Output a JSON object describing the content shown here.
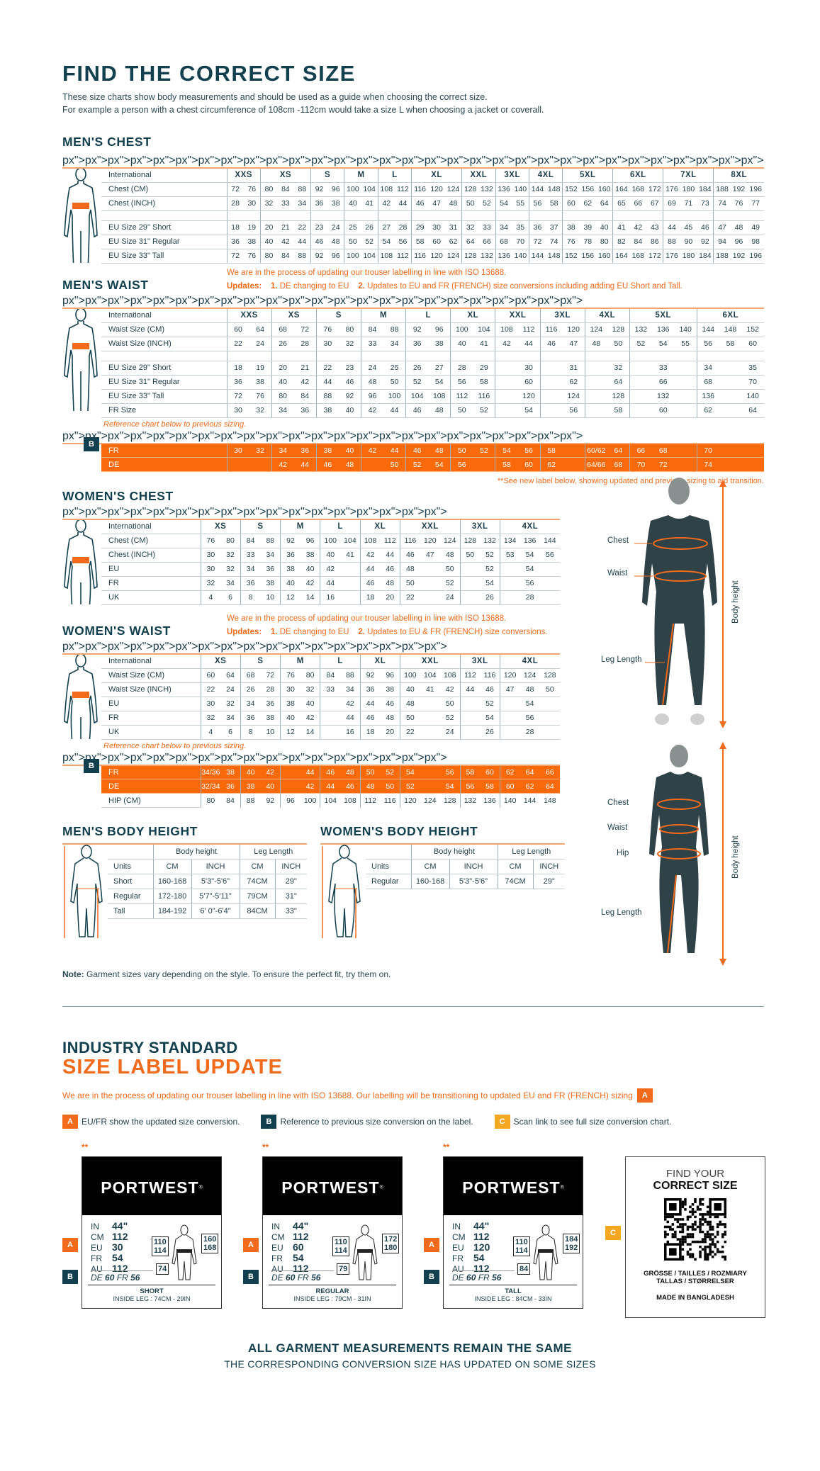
{
  "colors": {
    "navy": "#13404f",
    "orange": "#f26a1b",
    "badge_c": "#f7a823"
  },
  "title": "FIND THE CORRECT SIZE",
  "subtitle": [
    "These size charts show body measurements and should be used as a guide when choosing the correct size.",
    "For example a person with a chest circumference of 108cm -112cm would take a size L when choosing a jacket or coverall."
  ],
  "update_notes": {
    "iso": "We are in the process of updating our trouser labelling in line with ISO 13688.",
    "updates_label": "Updates:",
    "u1_num": "1.",
    "u1": "DE changing to EU",
    "u2_num": "2.",
    "u2_men": "Updates to EU and FR (FRENCH) size conversions including adding EU Short and Tall.",
    "u2_women": "Updates to EU & FR (FRENCH) size conversions.",
    "reference": "Reference chart below to previous sizing.",
    "see_new": "**See new label below, showing updated and previous sizing to aid transition."
  },
  "mens_chest": {
    "heading": "MEN'S CHEST",
    "header_label": "International",
    "groups": [
      [
        "XXS",
        2
      ],
      [
        "XS",
        3
      ],
      [
        "S",
        2
      ],
      [
        "M",
        2
      ],
      [
        "L",
        2
      ],
      [
        "XL",
        3
      ],
      [
        "XXL",
        2
      ],
      [
        "3XL",
        2
      ],
      [
        "4XL",
        2
      ],
      [
        "5XL",
        3
      ],
      [
        "6XL",
        3
      ],
      [
        "7XL",
        3
      ],
      [
        "8XL",
        3
      ]
    ],
    "rows": [
      {
        "label": "Chest (CM)",
        "cells": [
          "72",
          "76",
          "80",
          "84",
          "88",
          "92",
          "96",
          "100",
          "104",
          "108",
          "112",
          "116",
          "120",
          "124",
          "128",
          "132",
          "136",
          "140",
          "144",
          "148",
          "152",
          "156",
          "160",
          "164",
          "168",
          "172",
          "176",
          "180",
          "184",
          "188",
          "192",
          "196"
        ]
      },
      {
        "label": "Chest (INCH)",
        "cells": [
          "28",
          "30",
          "32",
          "33",
          "34",
          "36",
          "38",
          "40",
          "41",
          "42",
          "44",
          "46",
          "47",
          "48",
          "50",
          "52",
          "54",
          "55",
          "56",
          "58",
          "60",
          "62",
          "64",
          "65",
          "66",
          "67",
          "69",
          "71",
          "73",
          "74",
          "76",
          "77"
        ]
      }
    ],
    "eu_rows": [
      {
        "label": "EU Size 29\" Short",
        "cells": [
          "18",
          "19",
          "20",
          "21",
          "22",
          "23",
          "24",
          "25",
          "26",
          "27",
          "28",
          "29",
          "30",
          "31",
          "32",
          "33",
          "34",
          "35",
          "36",
          "37",
          "38",
          "39",
          "40",
          "41",
          "42",
          "43",
          "44",
          "45",
          "46",
          "47",
          "48",
          "49"
        ]
      },
      {
        "label": "EU Size 31\" Regular",
        "cells": [
          "36",
          "38",
          "40",
          "42",
          "44",
          "46",
          "48",
          "50",
          "52",
          "54",
          "56",
          "58",
          "60",
          "62",
          "64",
          "66",
          "68",
          "70",
          "72",
          "74",
          "76",
          "78",
          "80",
          "82",
          "84",
          "86",
          "88",
          "90",
          "92",
          "94",
          "96",
          "98"
        ]
      },
      {
        "label": "EU Size 33\" Tall",
        "cells": [
          "72",
          "76",
          "80",
          "84",
          "88",
          "92",
          "96",
          "100",
          "104",
          "108",
          "112",
          "116",
          "120",
          "124",
          "128",
          "132",
          "136",
          "140",
          "144",
          "148",
          "152",
          "156",
          "160",
          "164",
          "168",
          "172",
          "176",
          "180",
          "184",
          "188",
          "192",
          "196"
        ]
      }
    ]
  },
  "mens_waist": {
    "heading": "MEN'S WAIST",
    "header_label": "International",
    "groups": [
      [
        "XXS",
        2
      ],
      [
        "XS",
        2
      ],
      [
        "S",
        2
      ],
      [
        "M",
        2
      ],
      [
        "L",
        2
      ],
      [
        "XL",
        2
      ],
      [
        "XXL",
        2
      ],
      [
        "3XL",
        2
      ],
      [
        "4XL",
        2
      ],
      [
        "5XL",
        3
      ],
      [
        "6XL",
        3
      ]
    ],
    "rows": [
      {
        "label": "Waist Size (CM)",
        "cells": [
          "60",
          "64",
          "68",
          "72",
          "76",
          "80",
          "84",
          "88",
          "92",
          "96",
          "100",
          "104",
          "108",
          "112",
          "116",
          "120",
          "124",
          "128",
          "132",
          "136",
          "140",
          "144",
          "148",
          "152"
        ]
      },
      {
        "label": "Waist Size (INCH)",
        "cells": [
          "22",
          "24",
          "26",
          "28",
          "30",
          "32",
          "33",
          "34",
          "36",
          "38",
          "40",
          "41",
          "42",
          "44",
          "46",
          "47",
          "48",
          "50",
          "52",
          "54",
          "55",
          "56",
          "58",
          "60"
        ]
      }
    ],
    "eu_rows": [
      {
        "label": "EU Size 29\" Short",
        "cells": [
          "18",
          "19",
          "20",
          "21",
          "22",
          "23",
          "24",
          "25",
          "26",
          "27",
          "28",
          "29",
          "",
          "30",
          "",
          "31",
          "",
          "32",
          "",
          "33",
          "",
          "34",
          "",
          "35"
        ]
      },
      {
        "label": "EU Size 31\" Regular",
        "cells": [
          "36",
          "38",
          "40",
          "42",
          "44",
          "46",
          "48",
          "50",
          "52",
          "54",
          "56",
          "58",
          "",
          "60",
          "",
          "62",
          "",
          "64",
          "",
          "66",
          "",
          "68",
          "",
          "70"
        ]
      },
      {
        "label": "EU Size 33\" Tall",
        "cells": [
          "72",
          "76",
          "80",
          "84",
          "88",
          "92",
          "96",
          "100",
          "104",
          "108",
          "112",
          "116",
          "",
          "120",
          "",
          "124",
          "",
          "128",
          "",
          "132",
          "",
          "136",
          "",
          "140"
        ]
      },
      {
        "label": "FR Size",
        "cells": [
          "30",
          "32",
          "34",
          "36",
          "38",
          "40",
          "42",
          "44",
          "46",
          "48",
          "50",
          "52",
          "",
          "54",
          "",
          "56",
          "",
          "58",
          "",
          "60",
          "",
          "62",
          "",
          "64"
        ]
      }
    ],
    "ref_rows": [
      {
        "label": "FR",
        "cells": [
          "30",
          "32",
          "34",
          "36",
          "38",
          "40",
          "42",
          "44",
          "46",
          "48",
          "50",
          "52",
          "54",
          "56",
          "58",
          "",
          "60/62",
          "64",
          "66",
          "68",
          "",
          "70",
          "",
          ""
        ]
      },
      {
        "label": "DE",
        "cells": [
          "",
          "",
          "42",
          "44",
          "46",
          "48",
          "",
          "50",
          "52",
          "54",
          "56",
          "",
          "58",
          "60",
          "62",
          "",
          "64/66",
          "68",
          "70",
          "72",
          "",
          "74",
          "",
          ""
        ]
      }
    ]
  },
  "womens_chest": {
    "heading": "WOMEN'S CHEST",
    "header_label": "International",
    "groups": [
      [
        "XS",
        2
      ],
      [
        "S",
        2
      ],
      [
        "M",
        2
      ],
      [
        "L",
        2
      ],
      [
        "XL",
        2
      ],
      [
        "XXL",
        3
      ],
      [
        "3XL",
        2
      ],
      [
        "4XL",
        3
      ]
    ],
    "rows": [
      {
        "label": "Chest (CM)",
        "cells": [
          "76",
          "80",
          "84",
          "88",
          "92",
          "96",
          "100",
          "104",
          "108",
          "112",
          "116",
          "120",
          "124",
          "128",
          "132",
          "134",
          "136",
          "144"
        ]
      },
      {
        "label": "Chest (INCH)",
        "cells": [
          "30",
          "32",
          "33",
          "34",
          "36",
          "38",
          "40",
          "41",
          "42",
          "44",
          "46",
          "47",
          "48",
          "50",
          "52",
          "53",
          "54",
          "56"
        ]
      },
      {
        "label": "EU",
        "cells": [
          "30",
          "32",
          "34",
          "36",
          "38",
          "40",
          "42",
          "",
          "44",
          "46",
          "48",
          "",
          "50",
          "",
          "52",
          "",
          "54",
          ""
        ]
      },
      {
        "label": "FR",
        "cells": [
          "32",
          "34",
          "36",
          "38",
          "40",
          "42",
          "44",
          "",
          "46",
          "48",
          "50",
          "",
          "52",
          "",
          "54",
          "",
          "56",
          ""
        ]
      },
      {
        "label": "UK",
        "cells": [
          "4",
          "6",
          "8",
          "10",
          "12",
          "14",
          "16",
          "",
          "18",
          "20",
          "22",
          "",
          "24",
          "",
          "26",
          "",
          "28",
          ""
        ]
      }
    ]
  },
  "womens_waist": {
    "heading": "WOMEN'S WAIST",
    "header_label": "International",
    "groups": [
      [
        "XS",
        2
      ],
      [
        "S",
        2
      ],
      [
        "M",
        2
      ],
      [
        "L",
        2
      ],
      [
        "XL",
        2
      ],
      [
        "XXL",
        3
      ],
      [
        "3XL",
        2
      ],
      [
        "4XL",
        3
      ]
    ],
    "rows": [
      {
        "label": "Waist Size (CM)",
        "cells": [
          "60",
          "64",
          "68",
          "72",
          "76",
          "80",
          "84",
          "88",
          "92",
          "96",
          "100",
          "104",
          "108",
          "112",
          "116",
          "120",
          "124",
          "128"
        ]
      },
      {
        "label": "Waist Size (INCH)",
        "cells": [
          "22",
          "24",
          "26",
          "28",
          "30",
          "32",
          "33",
          "34",
          "36",
          "38",
          "40",
          "41",
          "42",
          "44",
          "46",
          "47",
          "48",
          "50"
        ]
      },
      {
        "label": "EU",
        "cells": [
          "30",
          "32",
          "34",
          "36",
          "38",
          "40",
          "",
          "42",
          "44",
          "46",
          "48",
          "",
          "50",
          "",
          "52",
          "",
          "54",
          ""
        ]
      },
      {
        "label": "FR",
        "cells": [
          "32",
          "34",
          "36",
          "38",
          "40",
          "42",
          "",
          "44",
          "46",
          "48",
          "50",
          "",
          "52",
          "",
          "54",
          "",
          "56",
          ""
        ]
      },
      {
        "label": "UK",
        "cells": [
          "4",
          "6",
          "8",
          "10",
          "12",
          "14",
          "",
          "16",
          "18",
          "20",
          "22",
          "",
          "24",
          "",
          "26",
          "",
          "28",
          ""
        ]
      }
    ],
    "ref_rows": [
      {
        "label": "FR",
        "cells": [
          "34/36",
          "38",
          "40",
          "42",
          "",
          "44",
          "46",
          "48",
          "50",
          "52",
          "54",
          "",
          "56",
          "58",
          "60",
          "62",
          "64",
          "66"
        ]
      },
      {
        "label": "DE",
        "cells": [
          "32/34",
          "36",
          "38",
          "40",
          "",
          "42",
          "44",
          "46",
          "48",
          "50",
          "52",
          "",
          "54",
          "56",
          "58",
          "60",
          "62",
          "64"
        ]
      }
    ],
    "hip_row": {
      "label": "HIP (CM)",
      "cells": [
        "80",
        "84",
        "88",
        "92",
        "96",
        "100",
        "104",
        "108",
        "112",
        "116",
        "120",
        "124",
        "128",
        "132",
        "136",
        "140",
        "144",
        "148"
      ]
    }
  },
  "badges": {
    "a": "A",
    "b": "B",
    "c": "C"
  },
  "photos": {
    "men": {
      "chest": "Chest",
      "waist": "Waist",
      "leg": "Leg Length",
      "height": "Body height"
    },
    "women": {
      "chest": "Chest",
      "waist": "Waist",
      "hip": "Hip",
      "leg": "Leg Length",
      "height": "Body height"
    }
  },
  "mens_body_height": {
    "heading": "MEN'S BODY HEIGHT",
    "col_groups": [
      "Body height",
      "Leg Length"
    ],
    "units_label": "Units",
    "units": [
      "CM",
      "INCH",
      "CM",
      "INCH"
    ],
    "rows": [
      {
        "label": "Short",
        "cells": [
          "160-168",
          "5'3\"-5'6\"",
          "74CM",
          "29\""
        ]
      },
      {
        "label": "Regular",
        "cells": [
          "172-180",
          "5'7\"-5'11\"",
          "79CM",
          "31\""
        ]
      },
      {
        "label": "Tall",
        "cells": [
          "184-192",
          "6' 0\"-6'4\"",
          "84CM",
          "33\""
        ]
      }
    ]
  },
  "womens_body_height": {
    "heading": "WOMEN'S BODY HEIGHT",
    "col_groups": [
      "Body height",
      "Leg Length"
    ],
    "units_label": "Units",
    "units": [
      "CM",
      "INCH",
      "CM",
      "INCH"
    ],
    "rows": [
      {
        "label": "Regular",
        "cells": [
          "160-168",
          "5'3\"-5'6\"",
          "74CM",
          "29\""
        ]
      }
    ]
  },
  "garment_note": {
    "bold": "Note:",
    "text": " Garment sizes vary depending on the style. To ensure the perfect fit, try them on."
  },
  "label_update": {
    "line1": "INDUSTRY STANDARD",
    "line2": "SIZE LABEL UPDATE",
    "intro": "We are in the process of updating our trouser labelling in line with ISO 13688. Our labelling will be transitioning to updated EU and FR (FRENCH) sizing",
    "legend": [
      {
        "badge": "A",
        "text": "EU/FR show the updated size conversion."
      },
      {
        "badge": "B",
        "text": "Reference to previous size conversion on the label."
      },
      {
        "badge": "C",
        "text": "Scan link to see full size conversion chart."
      }
    ]
  },
  "labels": [
    {
      "stars": "**",
      "brand": "PORTWEST",
      "rows": [
        [
          "IN",
          "44\""
        ],
        [
          "CM",
          "112"
        ],
        [
          "EU",
          "30"
        ],
        [
          "FR",
          "54"
        ],
        [
          "AU",
          "112"
        ]
      ],
      "de_k": "DE",
      "de_v": "60",
      "fr_k": "FR",
      "fr_v": "56",
      "waist_box": [
        "110",
        "114"
      ],
      "height_box": [
        "160",
        "168"
      ],
      "leg_box": "74",
      "fit": "SHORT",
      "inside_leg": "INSIDE LEG : 74CM - 29IN"
    },
    {
      "stars": "**",
      "brand": "PORTWEST",
      "rows": [
        [
          "IN",
          "44\""
        ],
        [
          "CM",
          "112"
        ],
        [
          "EU",
          "60"
        ],
        [
          "FR",
          "54"
        ],
        [
          "AU",
          "112"
        ]
      ],
      "de_k": "DE",
      "de_v": "60",
      "fr_k": "FR",
      "fr_v": "56",
      "waist_box": [
        "110",
        "114"
      ],
      "height_box": [
        "172",
        "180"
      ],
      "leg_box": "79",
      "fit": "REGULAR",
      "inside_leg": "INSIDE LEG : 79CM - 31IN"
    },
    {
      "stars": "**",
      "brand": "PORTWEST",
      "rows": [
        [
          "IN",
          "44\""
        ],
        [
          "CM",
          "112"
        ],
        [
          "EU",
          "120"
        ],
        [
          "FR",
          "54"
        ],
        [
          "AU",
          "112"
        ]
      ],
      "de_k": "DE",
      "de_v": "60",
      "fr_k": "FR",
      "fr_v": "56",
      "waist_box": [
        "110",
        "114"
      ],
      "height_box": [
        "184",
        "192"
      ],
      "leg_box": "84",
      "fit": "TALL",
      "inside_leg": "INSIDE LEG : 84CM - 33IN"
    }
  ],
  "qr_card": {
    "line1": "FIND YOUR",
    "line2": "CORRECT SIZE",
    "lang1": "GRÖSSE / TAILLES / ROZMIARY",
    "lang2": "TALLAS  / STØRRELSER",
    "made_in": "MADE IN BANGLADESH"
  },
  "footer": {
    "line1": "ALL GARMENT MEASUREMENTS REMAIN THE SAME",
    "line2": "THE CORRESPONDING CONVERSION SIZE HAS UPDATED ON SOME SIZES"
  }
}
